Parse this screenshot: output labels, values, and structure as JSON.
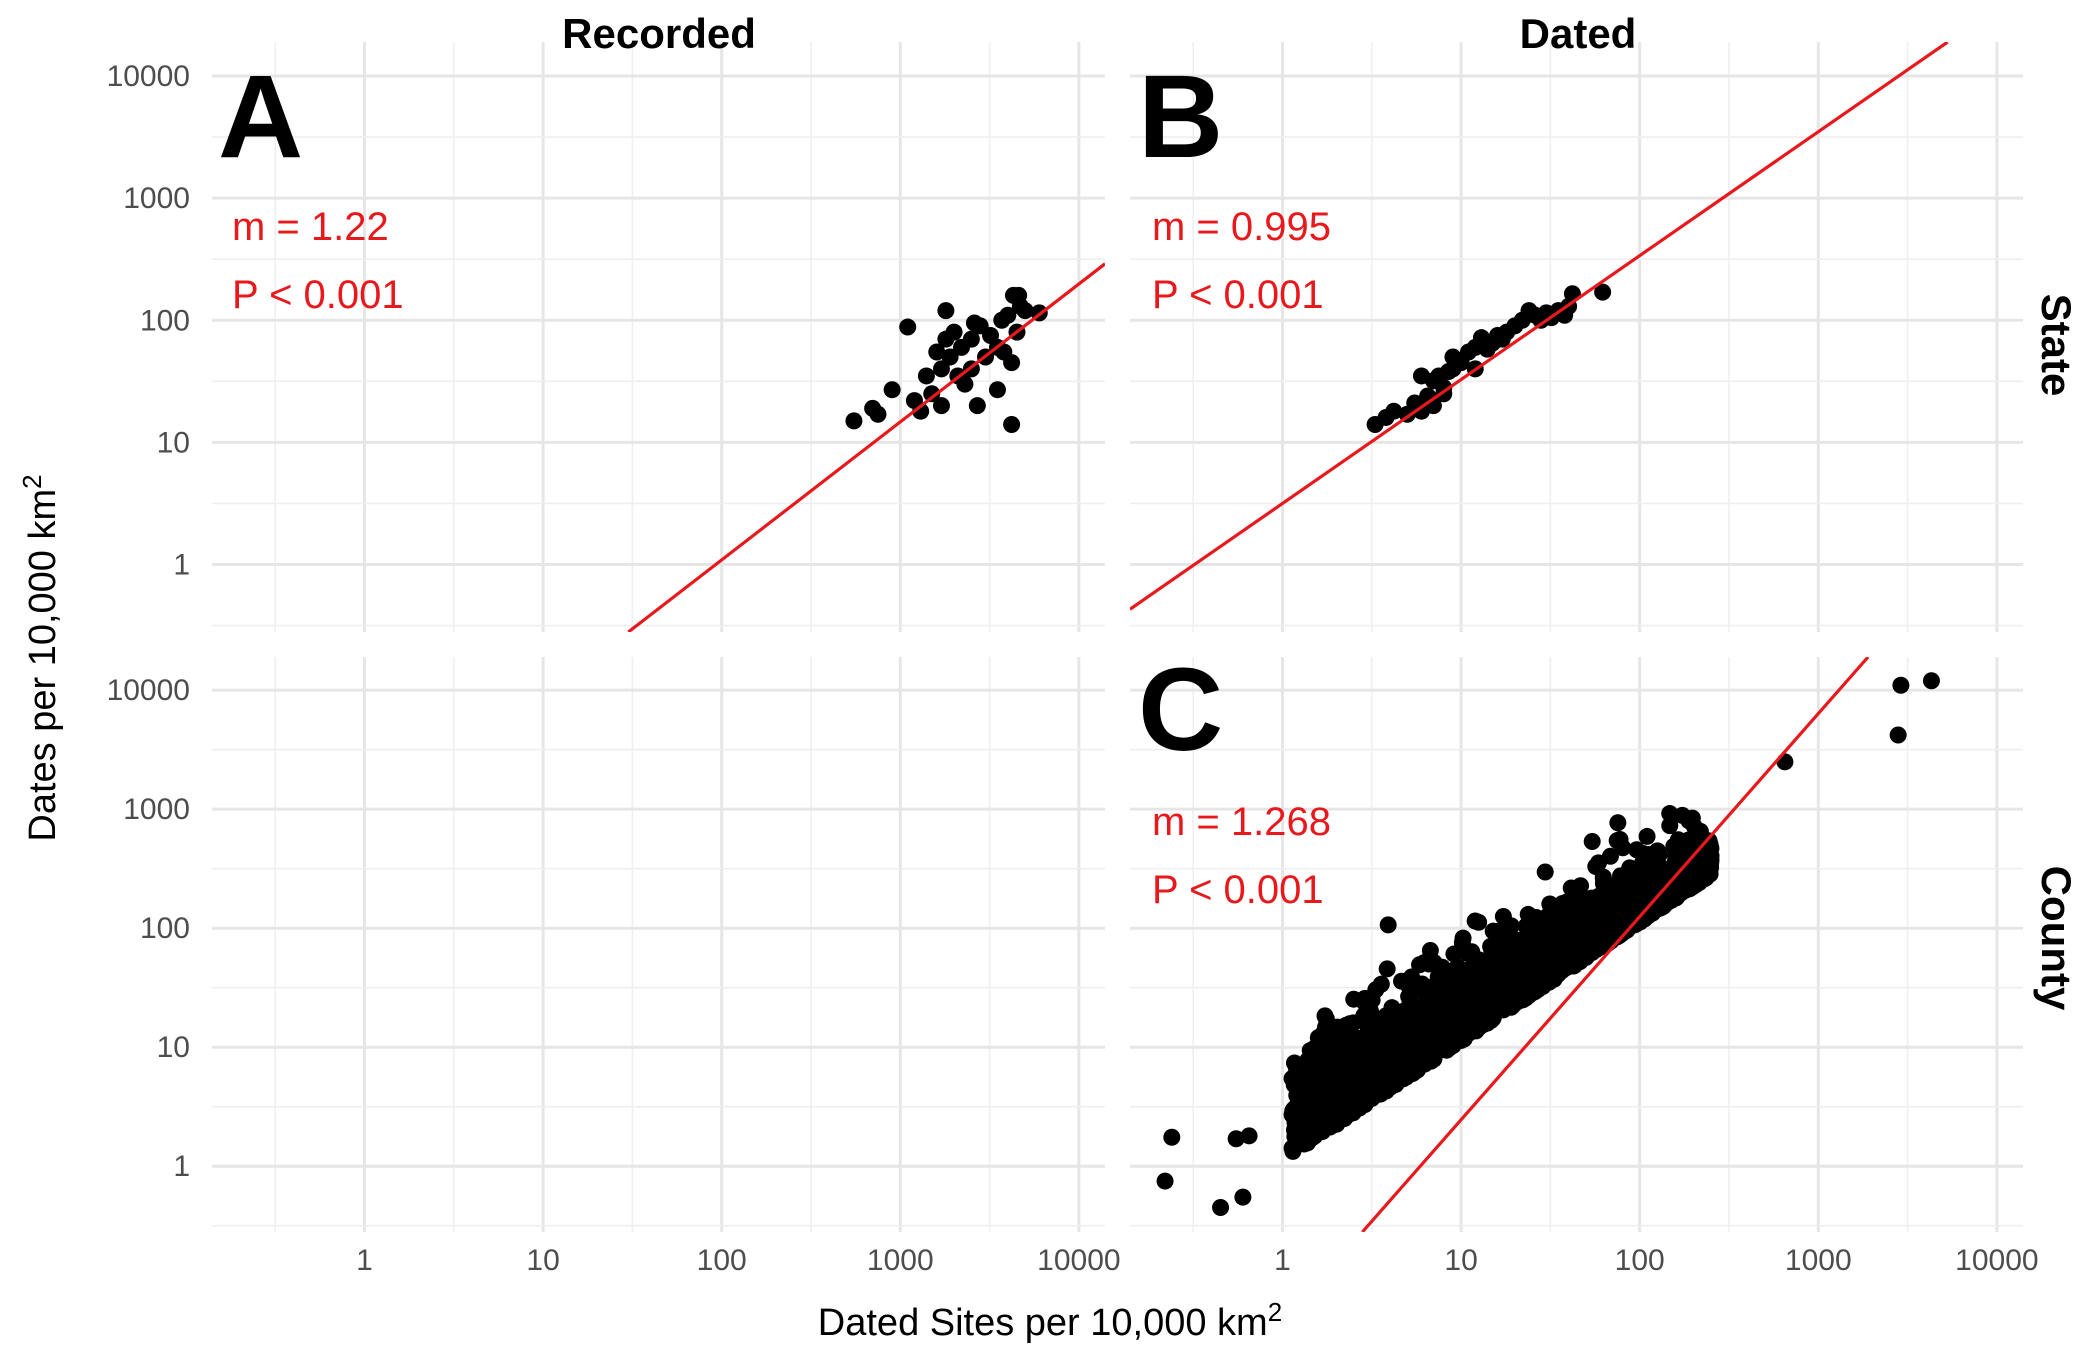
{
  "chart_data": {
    "type": "scatter",
    "scale": "log10",
    "xlabel": "Dated Sites per 10,000 km",
    "xlabel_sup": "2",
    "ylabel": "Dates per 10,000 km",
    "ylabel_sup": "2",
    "col_strips": [
      "Recorded",
      "Dated"
    ],
    "row_strips": [
      "State",
      "County"
    ],
    "x_ticks": [
      "1",
      "10",
      "100",
      "1000",
      "10000"
    ],
    "y_ticks": [
      "1",
      "10",
      "100",
      "1000",
      "10000"
    ],
    "x_tick_values": [
      1,
      10,
      100,
      1000,
      10000
    ],
    "y_tick_values": [
      1,
      10,
      100,
      1000,
      10000
    ],
    "xlim": [
      0.14,
      14000
    ],
    "ylim": [
      0.28,
      19000
    ],
    "grid": true,
    "point_color": "#000000",
    "line_color": "#e8191c",
    "panels": [
      {
        "letter": "A",
        "row": 0,
        "col": 0,
        "slope_text": "m = 1.22",
        "p_text": "P < 0.001",
        "line": {
          "x0": 30,
          "y0": 0.28,
          "x1": 14000,
          "y1": 290
        },
        "points": [
          [
            550,
            15
          ],
          [
            700,
            19
          ],
          [
            750,
            17
          ],
          [
            900,
            27
          ],
          [
            1100,
            88
          ],
          [
            1200,
            22
          ],
          [
            1300,
            18
          ],
          [
            1400,
            35
          ],
          [
            1500,
            25
          ],
          [
            1600,
            55
          ],
          [
            1700,
            40
          ],
          [
            1800,
            120
          ],
          [
            1800,
            70
          ],
          [
            1900,
            50
          ],
          [
            2000,
            80
          ],
          [
            2100,
            35
          ],
          [
            2200,
            60
          ],
          [
            2300,
            30
          ],
          [
            2500,
            40
          ],
          [
            2600,
            95
          ],
          [
            2700,
            20
          ],
          [
            2800,
            90
          ],
          [
            3000,
            50
          ],
          [
            3500,
            60
          ],
          [
            3500,
            27
          ],
          [
            3700,
            100
          ],
          [
            3800,
            55
          ],
          [
            4000,
            110
          ],
          [
            4200,
            45
          ],
          [
            4200,
            14
          ],
          [
            4300,
            160
          ],
          [
            4500,
            80
          ],
          [
            4600,
            160
          ],
          [
            4700,
            130
          ],
          [
            5000,
            120
          ],
          [
            6000,
            115
          ],
          [
            1700,
            20
          ],
          [
            2500,
            70
          ],
          [
            3200,
            75
          ]
        ]
      },
      {
        "letter": "B",
        "row": 0,
        "col": 1,
        "slope_text": "m = 0.995",
        "p_text": "P < 0.001",
        "line": {
          "x0": 0.14,
          "y0": 0.43,
          "x1": 5300,
          "y1": 19000
        },
        "points": [
          [
            3.3,
            14
          ],
          [
            3.8,
            16
          ],
          [
            4.2,
            18
          ],
          [
            5,
            17
          ],
          [
            5.5,
            21
          ],
          [
            6,
            18
          ],
          [
            6.5,
            24
          ],
          [
            6,
            35
          ],
          [
            7,
            32
          ],
          [
            7.5,
            35
          ],
          [
            8,
            28
          ],
          [
            8.5,
            38
          ],
          [
            9,
            40
          ],
          [
            10,
            45
          ],
          [
            11,
            55
          ],
          [
            12,
            60
          ],
          [
            13,
            72
          ],
          [
            14,
            58
          ],
          [
            15,
            65
          ],
          [
            16,
            75
          ],
          [
            18,
            80
          ],
          [
            20,
            90
          ],
          [
            22,
            100
          ],
          [
            24,
            120
          ],
          [
            26,
            110
          ],
          [
            28,
            100
          ],
          [
            30,
            115
          ],
          [
            32,
            105
          ],
          [
            35,
            120
          ],
          [
            38,
            110
          ],
          [
            40,
            130
          ],
          [
            42,
            165
          ],
          [
            62,
            170
          ],
          [
            9,
            50
          ],
          [
            17,
            70
          ],
          [
            12,
            40
          ],
          [
            8,
            25
          ],
          [
            7,
            20
          ]
        ]
      },
      {
        "letter": "C",
        "row": 1,
        "col": 1,
        "slope_text": "m = 1.268",
        "p_text": "P < 0.001",
        "line": {
          "x0": 2.8,
          "y0": 0.28,
          "x1": 1900,
          "y1": 19000
        },
        "outliers": [
          [
            0.22,
            0.75
          ],
          [
            0.24,
            1.75
          ],
          [
            0.45,
            0.45
          ],
          [
            0.6,
            0.55
          ],
          [
            0.55,
            1.7
          ],
          [
            0.65,
            1.8
          ],
          [
            2900,
            11000
          ],
          [
            4300,
            12000
          ],
          [
            2800,
            4200
          ],
          [
            650,
            2500
          ]
        ]
      }
    ]
  }
}
